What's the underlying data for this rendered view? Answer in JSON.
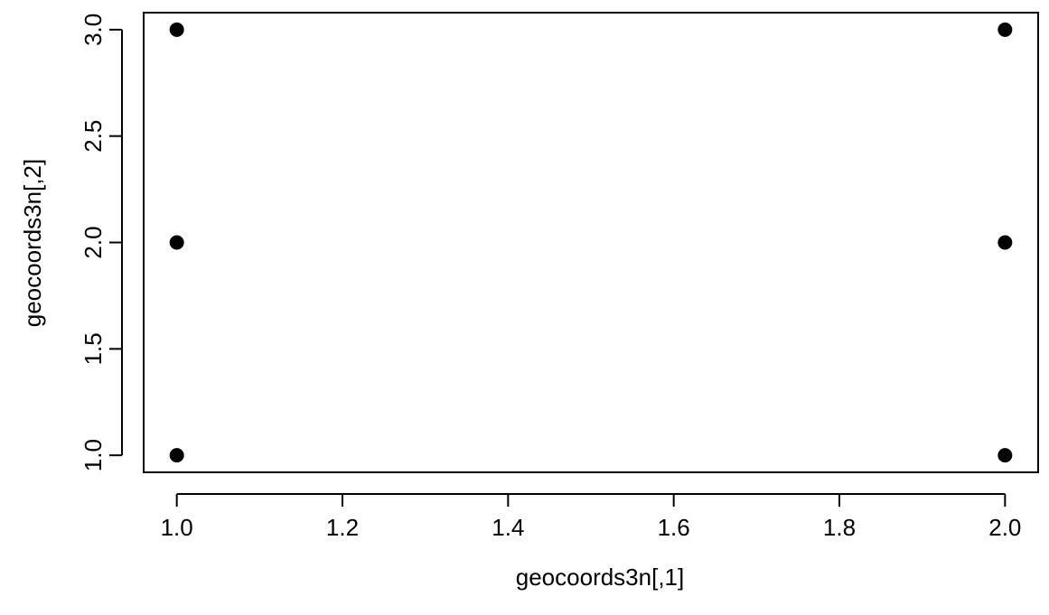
{
  "chart_data": {
    "type": "scatter",
    "title": "",
    "xlabel": "geocoords3n[,1]",
    "ylabel": "geocoords3n[,2]",
    "xlim": [
      0.96,
      2.04
    ],
    "ylim": [
      0.92,
      3.08
    ],
    "x_ticks": [
      1.0,
      1.2,
      1.4,
      1.6,
      1.8,
      2.0
    ],
    "x_tick_labels": [
      "1.0",
      "1.2",
      "1.4",
      "1.6",
      "1.8",
      "2.0"
    ],
    "y_ticks": [
      1.0,
      1.5,
      2.0,
      2.5,
      3.0
    ],
    "y_tick_labels": [
      "1.0",
      "1.5",
      "2.0",
      "2.5",
      "3.0"
    ],
    "grid": false,
    "legend": "none",
    "point_color": "#000000",
    "points": [
      {
        "x": 1,
        "y": 3
      },
      {
        "x": 1,
        "y": 2
      },
      {
        "x": 1,
        "y": 1
      },
      {
        "x": 2,
        "y": 3
      },
      {
        "x": 2,
        "y": 2
      },
      {
        "x": 2,
        "y": 1
      }
    ]
  }
}
